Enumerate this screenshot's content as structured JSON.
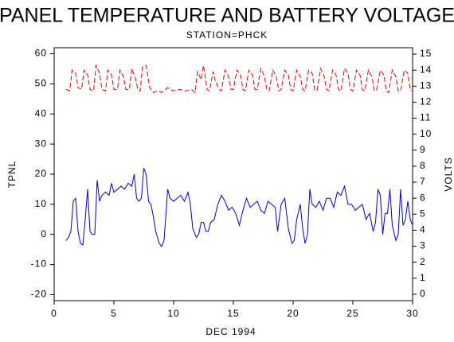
{
  "chart_data": {
    "type": "line",
    "title": "PANEL TEMPERATURE AND BATTERY VOLTAGE",
    "subtitle": "STATION=PHCK",
    "x_label": "DEC 1994",
    "y_label": "TPNL",
    "y2_label": "VOLTS",
    "xlim": [
      0,
      30
    ],
    "xticks": [
      0,
      5,
      10,
      15,
      20,
      25,
      30
    ],
    "ylim": [
      -22,
      62
    ],
    "yticks": [
      -20,
      -10,
      0,
      10,
      20,
      30,
      40,
      50,
      60
    ],
    "y2lim": [
      -0.4,
      15.4
    ],
    "y2ticks": [
      0,
      1,
      2,
      3,
      4,
      5,
      6,
      7,
      8,
      9,
      10,
      11,
      12,
      13,
      14,
      15
    ],
    "series": [
      {
        "name": "TPNL",
        "color": "#0000cc",
        "dash": false,
        "x": [
          1.0,
          1.2,
          1.4,
          1.6,
          1.8,
          2.0,
          2.2,
          2.4,
          2.6,
          2.8,
          3.0,
          3.2,
          3.4,
          3.6,
          3.8,
          4.0,
          4.3,
          4.6,
          4.8,
          5.0,
          5.3,
          5.6,
          5.9,
          6.2,
          6.5,
          6.7,
          6.9,
          7.1,
          7.3,
          7.5,
          7.7,
          7.9,
          8.1,
          8.3,
          8.5,
          8.8,
          9.0,
          9.2,
          9.5,
          9.7,
          10.0,
          10.3,
          10.6,
          10.9,
          11.2,
          11.4,
          11.6,
          11.9,
          12.1,
          12.3,
          12.5,
          12.7,
          12.9,
          13.1,
          13.4,
          13.7,
          14.0,
          14.3,
          14.6,
          14.9,
          15.2,
          15.5,
          15.8,
          16.1,
          16.4,
          16.7,
          17.0,
          17.3,
          17.6,
          17.9,
          18.2,
          18.5,
          18.7,
          19.0,
          19.3,
          19.6,
          19.9,
          20.1,
          20.3,
          20.6,
          20.8,
          21.0,
          21.2,
          21.4,
          21.6,
          21.9,
          22.2,
          22.5,
          22.8,
          23.1,
          23.4,
          23.7,
          24.0,
          24.3,
          24.6,
          24.9,
          25.2,
          25.5,
          25.8,
          26.1,
          26.4,
          26.7,
          26.9,
          27.1,
          27.3,
          27.5,
          27.7,
          27.9,
          28.1,
          28.3,
          28.6,
          28.8,
          29.0,
          29.2,
          29.4,
          29.6,
          29.8,
          30.0
        ],
        "values": [
          -2,
          -1,
          1,
          11,
          12,
          1,
          -3,
          -3.5,
          5,
          15,
          1,
          0,
          0,
          18,
          11,
          13,
          14,
          13,
          17,
          14,
          15,
          16,
          15,
          17,
          16,
          20,
          12,
          11,
          12,
          22,
          20,
          11,
          10,
          6,
          1,
          -3,
          -4,
          -2,
          15,
          12,
          11,
          12,
          13,
          11,
          14,
          10,
          2,
          -1,
          0,
          4,
          4,
          1,
          1,
          4,
          5,
          10,
          13,
          11,
          8,
          9,
          7,
          3,
          8,
          12,
          9,
          10,
          11,
          8,
          7,
          11,
          10,
          9,
          1,
          10,
          12,
          2,
          -3,
          -2,
          5,
          10,
          2,
          -3,
          0,
          15,
          10,
          9,
          11,
          8,
          12,
          12,
          9,
          14,
          13,
          16,
          10,
          10,
          8,
          9,
          10,
          5,
          7,
          1,
          4,
          15,
          13,
          0,
          7,
          7,
          15,
          3,
          -2,
          0,
          15,
          3,
          5,
          11,
          5,
          3
        ]
      },
      {
        "name": "VOLTS",
        "color": "#dd0000",
        "dash": true,
        "axis": "y2",
        "x": [
          1.0,
          1.3,
          1.5,
          1.8,
          2.0,
          2.3,
          2.5,
          2.8,
          3.0,
          3.3,
          3.5,
          3.8,
          4.0,
          4.3,
          4.5,
          4.8,
          5.0,
          5.3,
          5.5,
          5.8,
          6.0,
          6.3,
          6.5,
          6.8,
          7.0,
          7.2,
          7.4,
          7.7,
          8.0,
          8.3,
          8.7,
          9.0,
          9.5,
          10.0,
          10.5,
          11.0,
          11.5,
          11.8,
          12.0,
          12.3,
          12.5,
          12.8,
          13.0,
          13.3,
          13.5,
          13.8,
          14.0,
          14.3,
          14.6,
          14.8,
          15.0,
          15.3,
          15.6,
          15.8,
          16.0,
          16.3,
          16.6,
          16.8,
          17.0,
          17.3,
          17.6,
          17.8,
          18.0,
          18.3,
          18.6,
          18.8,
          19.0,
          19.3,
          19.6,
          19.8,
          20.0,
          20.3,
          20.6,
          20.8,
          21.0,
          21.3,
          21.6,
          21.8,
          22.0,
          22.3,
          22.6,
          22.8,
          23.0,
          23.3,
          23.6,
          23.8,
          24.0,
          24.3,
          24.6,
          24.8,
          25.0,
          25.3,
          25.6,
          25.8,
          26.0,
          26.3,
          26.6,
          26.8,
          27.0,
          27.3,
          27.6,
          27.8,
          28.0,
          28.3,
          28.6,
          28.8,
          29.0,
          29.3,
          29.6,
          29.8,
          30.0
        ],
        "values": [
          12.8,
          12.7,
          14.0,
          13.8,
          12.9,
          12.8,
          14.0,
          13.7,
          12.8,
          12.7,
          14.3,
          13.8,
          12.8,
          12.7,
          14.0,
          13.7,
          12.8,
          12.8,
          14.0,
          13.6,
          12.8,
          12.8,
          14.1,
          13.5,
          12.8,
          12.7,
          14.2,
          14.3,
          12.9,
          12.6,
          12.7,
          12.6,
          12.9,
          12.7,
          12.8,
          12.7,
          12.8,
          12.6,
          13.9,
          13.4,
          14.3,
          12.8,
          12.7,
          13.9,
          13.3,
          12.8,
          12.7,
          14.0,
          13.6,
          12.8,
          12.8,
          14.0,
          13.7,
          12.8,
          12.7,
          14.0,
          13.7,
          12.8,
          12.8,
          14.1,
          13.6,
          12.8,
          12.7,
          14.0,
          13.6,
          12.7,
          12.8,
          14.0,
          13.7,
          12.8,
          12.7,
          14.0,
          13.6,
          12.8,
          12.7,
          14.0,
          13.8,
          12.8,
          12.7,
          14.1,
          13.6,
          12.8,
          12.7,
          14.0,
          13.7,
          12.8,
          12.7,
          14.1,
          13.8,
          12.8,
          12.7,
          14.0,
          13.7,
          12.8,
          12.7,
          14.0,
          13.6,
          12.7,
          12.8,
          14.0,
          13.7,
          12.7,
          12.6,
          14.0,
          13.6,
          12.7,
          12.7,
          14.0,
          13.8,
          12.8,
          12.7
        ]
      }
    ]
  }
}
